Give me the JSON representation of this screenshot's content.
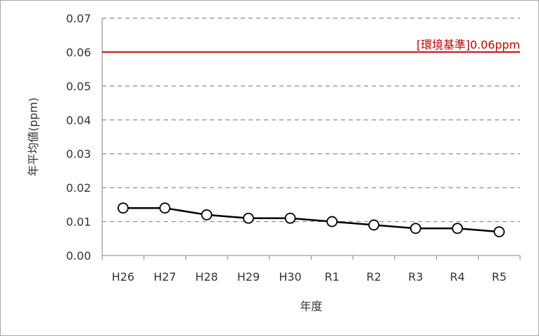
{
  "chart_data": {
    "type": "line",
    "xlabel": "年度",
    "ylabel": "年平均値(ppm)",
    "categories": [
      "H26",
      "H27",
      "H28",
      "H29",
      "H30",
      "R1",
      "R2",
      "R3",
      "R4",
      "R5"
    ],
    "series": [
      {
        "values": [
          0.014,
          0.014,
          0.012,
          0.011,
          0.011,
          0.01,
          0.009,
          0.008,
          0.008,
          0.007
        ]
      }
    ],
    "ylim": [
      0,
      0.07
    ],
    "yticks": [
      "0.00",
      "0.01",
      "0.02",
      "0.03",
      "0.04",
      "0.05",
      "0.06",
      "0.07"
    ],
    "grid": true,
    "reference_line": {
      "value": 0.06,
      "label": "[環境基準]0.06ppm",
      "color": "#c00000"
    },
    "colors": {
      "series": "#000000",
      "marker_fill": "#ffffff",
      "grid": "#8c8c8c",
      "axis": "#808080"
    }
  }
}
